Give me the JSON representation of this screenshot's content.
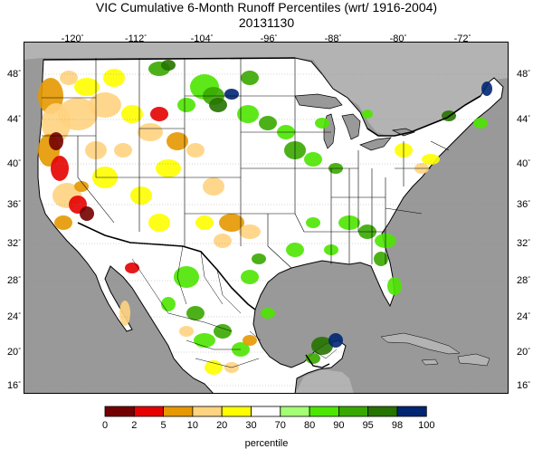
{
  "title_line1": "VIC Cumulative 6-Month Runoff Percentiles (wrt/ 1916-2004)",
  "title_line2": "20131130",
  "lon_labels": [
    "-120",
    "-112",
    "-104",
    "-96",
    "-88",
    "-80",
    "-72"
  ],
  "lat_labels": [
    "48",
    "44",
    "40",
    "36",
    "32",
    "28",
    "24",
    "20",
    "16"
  ],
  "degree_symbol": "°",
  "legend": {
    "title": "percentile",
    "ticks": [
      "0",
      "2",
      "5",
      "10",
      "20",
      "30",
      "70",
      "80",
      "90",
      "95",
      "98",
      "100"
    ],
    "colors": [
      "#730000",
      "#e60000",
      "#e69800",
      "#ffd37f",
      "#fefe00",
      "#ffffff",
      "#a3ff73",
      "#4ce600",
      "#38a800",
      "#267300",
      "#002673"
    ]
  },
  "colors": {
    "water": "#999999",
    "land_bg": "#ffffff",
    "outside_land": "#b3b3b3"
  }
}
